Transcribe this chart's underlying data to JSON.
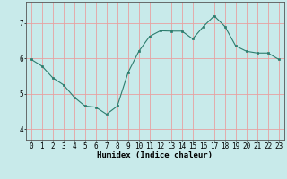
{
  "x": [
    0,
    1,
    2,
    3,
    4,
    5,
    6,
    7,
    8,
    9,
    10,
    11,
    12,
    13,
    14,
    15,
    16,
    17,
    18,
    19,
    20,
    21,
    22,
    23
  ],
  "y": [
    5.97,
    5.78,
    5.45,
    5.25,
    4.9,
    4.65,
    4.62,
    4.42,
    4.65,
    5.6,
    6.2,
    6.62,
    6.78,
    6.77,
    6.77,
    6.55,
    6.9,
    7.2,
    6.9,
    6.35,
    6.2,
    6.15,
    6.15,
    5.97
  ],
  "line_color": "#2d7d6e",
  "bg_color": "#c8eaea",
  "grid_color": "#e8a0a0",
  "ylabel_ticks": [
    4,
    5,
    6,
    7
  ],
  "xlabel": "Humidex (Indice chaleur)",
  "xlim": [
    -0.5,
    23.5
  ],
  "ylim": [
    3.7,
    7.6
  ],
  "xtick_labels": [
    "0",
    "1",
    "2",
    "3",
    "4",
    "5",
    "6",
    "7",
    "8",
    "9",
    "10",
    "11",
    "12",
    "13",
    "14",
    "15",
    "16",
    "17",
    "18",
    "19",
    "20",
    "21",
    "22",
    "23"
  ],
  "axis_fontsize": 6.5,
  "tick_fontsize": 5.5
}
